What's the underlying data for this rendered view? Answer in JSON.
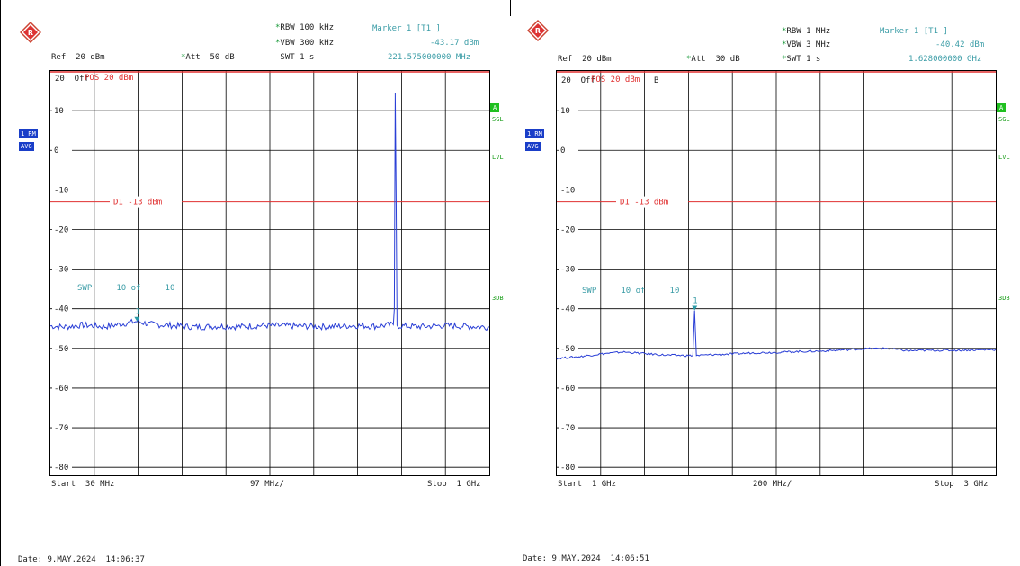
{
  "screens": [
    {
      "rbw": "RBW 100 kHz",
      "vbw": "VBW 300 kHz",
      "swt": "SWT 1 s",
      "ref": "Ref  20 dBm",
      "att": "Att  50 dB",
      "marker_title": "Marker 1 [T1 ]",
      "marker_level": "-43.17 dBm",
      "marker_freq": "221.575000000 MHz",
      "offset_label": "20  Off",
      "pos_label": "POS 20 dBm",
      "trace_badge": "1 RM",
      "avg_badge": "AVG",
      "sgl_a": "A",
      "sgl": "SGL",
      "lvl": "LVL",
      "db3": "3DB",
      "d1_label": "D1  -13 dBm",
      "swp_label": "SWP     10 of     10",
      "marker_num": "1",
      "start": "Start  30 MHz",
      "span_div": "97 MHz/",
      "stop": "Stop  1 GHz",
      "date": "Date: 9.MAY.2024  14:06:37"
    },
    {
      "rbw": "RBW 1 MHz",
      "vbw": "VBW 3 MHz",
      "swt": "SWT 1 s",
      "ref": "Ref  20 dBm",
      "att": "Att  30 dB",
      "marker_title": "Marker 1 [T1 ]",
      "marker_level": "-40.42 dBm",
      "marker_freq": "1.628000000 GHz",
      "offset_label": "20  Off",
      "pos_label": "POS 20 dBm",
      "pos_suffix": "B",
      "trace_badge": "1 RM",
      "avg_badge": "AVG",
      "sgl_a": "A",
      "sgl": "SGL",
      "lvl": "LVL",
      "db3": "3DB",
      "d1_label": "D1  -13 dBm",
      "swp_label": "SWP     10 of     10",
      "marker_num": "1",
      "start": "Start  1 GHz",
      "span_div": "200 MHz/",
      "stop": "Stop  3 GHz",
      "date": "Date: 9.MAY.2024  14:06:51"
    }
  ],
  "chart_data": [
    {
      "type": "line",
      "xlabel": "",
      "ylabel": "",
      "x_unit": "MHz",
      "xlim": [
        30,
        1000
      ],
      "ylim": [
        -82,
        20
      ],
      "y_ticks": [
        10,
        0,
        -10,
        -20,
        -30,
        -40,
        -50,
        -60,
        -70,
        -80
      ],
      "y_tick_labels": [
        "10",
        "0",
        "-10",
        "-20",
        "-30",
        "-40",
        "-50",
        "-60",
        "-70",
        "-80"
      ],
      "grid": true,
      "display_line": {
        "name": "D1",
        "value": -13
      },
      "series": [
        {
          "color": "#2a3fd6",
          "x": [
            30,
            60,
            100,
            150,
            200,
            221.575,
            250,
            300,
            350,
            400,
            450,
            500,
            550,
            600,
            650,
            700,
            750,
            788,
            790,
            792,
            794,
            796,
            800,
            850,
            900,
            950,
            1000
          ],
          "y": [
            -44.3,
            -44.6,
            -44.1,
            -44.5,
            -43.6,
            -43.17,
            -43.9,
            -44.2,
            -44.6,
            -44.4,
            -44.5,
            -44.2,
            -44.3,
            -44.4,
            -44.5,
            -44.2,
            -44.4,
            -44.0,
            -40,
            14.5,
            -12,
            -44.0,
            -44.3,
            -44.5,
            -44.2,
            -44.4,
            -44.6
          ]
        }
      ],
      "marker": {
        "label": "1",
        "x": 221.575,
        "y": -43.17
      }
    },
    {
      "type": "line",
      "xlabel": "",
      "ylabel": "",
      "x_unit": "GHz",
      "xlim": [
        1,
        3
      ],
      "ylim": [
        -82,
        20
      ],
      "y_ticks": [
        10,
        0,
        -10,
        -20,
        -30,
        -40,
        -50,
        -60,
        -70,
        -80
      ],
      "y_tick_labels": [
        "10",
        "0",
        "-10",
        "-20",
        "-30",
        "-40",
        "-50",
        "-60",
        "-70",
        "-80"
      ],
      "grid": true,
      "display_line": {
        "name": "D1",
        "value": -13
      },
      "series": [
        {
          "color": "#2a3fd6",
          "x": [
            1.0,
            1.1,
            1.2,
            1.3,
            1.4,
            1.5,
            1.6,
            1.62,
            1.628,
            1.636,
            1.7,
            1.8,
            1.9,
            2.0,
            2.1,
            2.2,
            2.3,
            2.4,
            2.5,
            2.6,
            2.7,
            2.8,
            2.9,
            3.0
          ],
          "y": [
            -52.5,
            -52.1,
            -51.4,
            -50.9,
            -51.3,
            -51.7,
            -51.8,
            -51.8,
            -40.42,
            -51.8,
            -51.6,
            -51.4,
            -51.1,
            -51.0,
            -50.8,
            -50.7,
            -50.4,
            -50.1,
            -50.0,
            -50.6,
            -50.5,
            -50.5,
            -50.4,
            -50.3
          ]
        }
      ],
      "marker": {
        "label": "1",
        "x": 1.628,
        "y": -40.42
      }
    }
  ]
}
